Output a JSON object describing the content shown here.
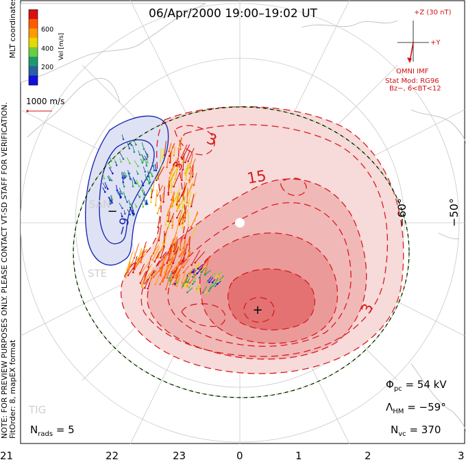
{
  "title": "06/Apr/2000 19:00–19:02 UT",
  "side_notes": {
    "line1": "NOTE: FOR PREVIEW PURPOSES ONLY. PLEASE CONTACT VT-SD STAFF FOR VERIFICATION.",
    "line2": "FitOrder: 8, mapEX format"
  },
  "top_notes": {
    "coords": "MLT coordinates",
    "vel_label": "Vel [m/s]"
  },
  "colorbar": {
    "ticks": [
      "600",
      "400",
      "200"
    ],
    "colors": [
      "#d81010",
      "#ff5a00",
      "#ff9a00",
      "#e8d800",
      "#6ccc40",
      "#1a9a6c",
      "#2a60a0",
      "#1010e0"
    ]
  },
  "vector_scale": "1000 m/s",
  "imf": {
    "z_label": "+Z (30 nT)",
    "y_label": "+Y",
    "source": "OMNI IMF",
    "model_line1": "Stat Mod: RG96",
    "model_line2": "Bz−, 6<BT<12"
  },
  "stats": {
    "phi_symbol": "Φ",
    "phi_sub": "pc",
    "phi_value": "= 54 kV",
    "lambda_symbol": "Λ",
    "lambda_sub": "HM",
    "lambda_value": "= −59°",
    "nvc_symbol": "N",
    "nvc_sub": "vc",
    "nvc_value": "= 370",
    "nrads_symbol": "N",
    "nrads_sub": "rads",
    "nrads_value": "= 5"
  },
  "lat_labels": [
    "−60°",
    "−50°"
  ],
  "mlt_ticks": [
    "21",
    "22",
    "23",
    "0",
    "1",
    "2",
    "3"
  ],
  "contour_labels": [
    "3",
    "15",
    "3",
    "−9",
    "3"
  ],
  "markers": {
    "min": "−",
    "max": "+"
  },
  "station_labels": [
    "SAN",
    "STE",
    "TIG"
  ],
  "colors": {
    "negative_fill": "#dfe2f4",
    "negative_line": "#1a2ab0",
    "positive_line": "#d81a1a",
    "pos_fill_1": "#f7dada",
    "pos_fill_2": "#f1b8b8",
    "pos_fill_3": "#eb9a9a",
    "pos_fill_4": "#e47272",
    "boundary_dash": "#66cc33"
  },
  "chart_data": {
    "type": "polar-contour",
    "title": "06/Apr/2000 19:00–19:02 UT",
    "coordinates": "MLT",
    "x_ticks_mlt": [
      21,
      22,
      23,
      0,
      1,
      2,
      3
    ],
    "lat_circles_deg": [
      -60,
      -50
    ],
    "potential_contours_kV": [
      -9,
      3,
      15
    ],
    "cross_polar_cap_potential_kV": 54,
    "heppner_maynard_lat_deg": -59,
    "n_vectors": 370,
    "n_radars": 5,
    "velocity_colorbar_ms": [
      200,
      400,
      600
    ],
    "vector_scale_ms": 1000
  }
}
